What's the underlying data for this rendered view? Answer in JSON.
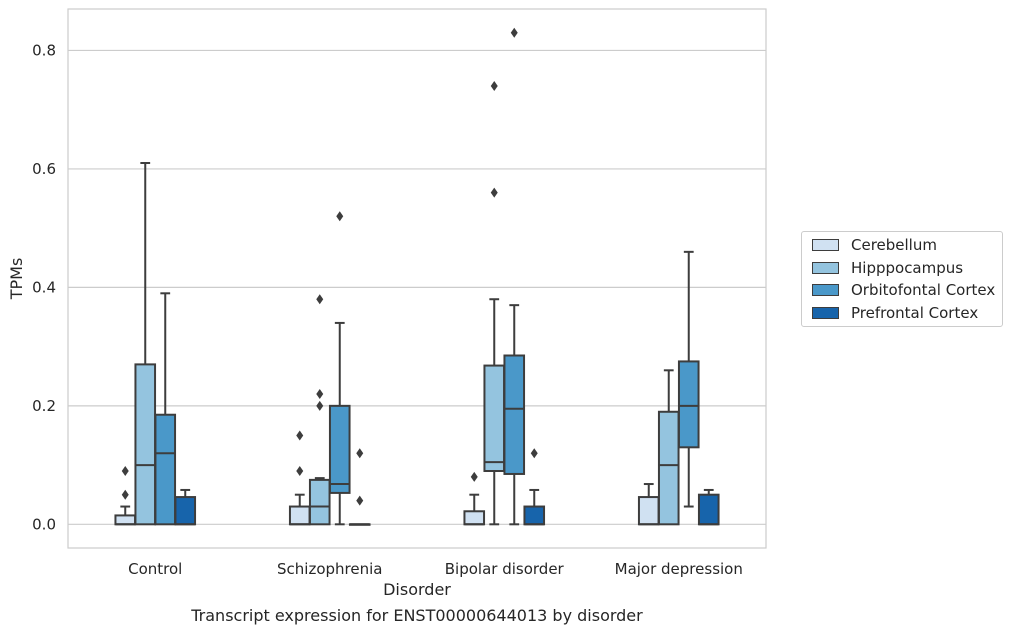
{
  "chart_data": {
    "type": "boxplot",
    "title": "",
    "caption": "Transcript expression for ENST00000644013 by disorder",
    "xlabel": "Disorder",
    "ylabel": "TPMs",
    "ylim": [
      -0.04,
      0.87
    ],
    "yticks": [
      0.0,
      0.2,
      0.4,
      0.6,
      0.8
    ],
    "ytick_labels": [
      "0.0",
      "0.2",
      "0.4",
      "0.6",
      "0.8"
    ],
    "grid": "horizontal",
    "legend_position": "right",
    "categories": [
      "Control",
      "Schizophrenia",
      "Bipolar disorder",
      "Major depression"
    ],
    "series": [
      {
        "name": "Cerebellum",
        "color": "#d0e1f2",
        "boxes": [
          {
            "q1": 0.0,
            "median": 0.0,
            "q3": 0.015,
            "whisker_low": 0.0,
            "whisker_high": 0.03,
            "outliers": [
              0.05,
              0.09
            ]
          },
          {
            "q1": 0.0,
            "median": 0.0,
            "q3": 0.03,
            "whisker_low": 0.0,
            "whisker_high": 0.05,
            "outliers": [
              0.09,
              0.15
            ]
          },
          {
            "q1": 0.0,
            "median": 0.0,
            "q3": 0.022,
            "whisker_low": 0.0,
            "whisker_high": 0.05,
            "outliers": [
              0.08
            ]
          },
          {
            "q1": 0.0,
            "median": 0.0,
            "q3": 0.046,
            "whisker_low": 0.0,
            "whisker_high": 0.068,
            "outliers": []
          }
        ]
      },
      {
        "name": "Hipppocampus",
        "color": "#94c4df",
        "boxes": [
          {
            "q1": 0.0,
            "median": 0.1,
            "q3": 0.27,
            "whisker_low": 0.0,
            "whisker_high": 0.61,
            "outliers": []
          },
          {
            "q1": 0.0,
            "median": 0.03,
            "q3": 0.075,
            "whisker_low": 0.0,
            "whisker_high": 0.078,
            "outliers": [
              0.2,
              0.22,
              0.38
            ]
          },
          {
            "q1": 0.09,
            "median": 0.105,
            "q3": 0.268,
            "whisker_low": 0.0,
            "whisker_high": 0.38,
            "outliers": [
              0.56,
              0.74
            ]
          },
          {
            "q1": 0.0,
            "median": 0.1,
            "q3": 0.19,
            "whisker_low": 0.0,
            "whisker_high": 0.26,
            "outliers": []
          }
        ]
      },
      {
        "name": "Orbitofontal Cortex",
        "color": "#4a98c9",
        "boxes": [
          {
            "q1": 0.0,
            "median": 0.12,
            "q3": 0.185,
            "whisker_low": 0.0,
            "whisker_high": 0.39,
            "outliers": []
          },
          {
            "q1": 0.053,
            "median": 0.068,
            "q3": 0.2,
            "whisker_low": 0.0,
            "whisker_high": 0.34,
            "outliers": [
              0.52
            ]
          },
          {
            "q1": 0.085,
            "median": 0.195,
            "q3": 0.285,
            "whisker_low": 0.0,
            "whisker_high": 0.37,
            "outliers": [
              0.83
            ]
          },
          {
            "q1": 0.13,
            "median": 0.2,
            "q3": 0.275,
            "whisker_low": 0.03,
            "whisker_high": 0.46,
            "outliers": []
          }
        ]
      },
      {
        "name": "Prefrontal Cortex",
        "color": "#1764ab",
        "boxes": [
          {
            "q1": 0.0,
            "median": 0.0,
            "q3": 0.046,
            "whisker_low": 0.0,
            "whisker_high": 0.058,
            "outliers": []
          },
          {
            "q1": 0.0,
            "median": 0.0,
            "q3": 0.0,
            "whisker_low": 0.0,
            "whisker_high": 0.0,
            "outliers": [
              0.04,
              0.12
            ]
          },
          {
            "q1": 0.0,
            "median": 0.0,
            "q3": 0.03,
            "whisker_low": 0.0,
            "whisker_high": 0.058,
            "outliers": [
              0.12
            ]
          },
          {
            "q1": 0.0,
            "median": 0.0,
            "q3": 0.05,
            "whisker_low": 0.0,
            "whisker_high": 0.058,
            "outliers": []
          }
        ]
      }
    ]
  }
}
